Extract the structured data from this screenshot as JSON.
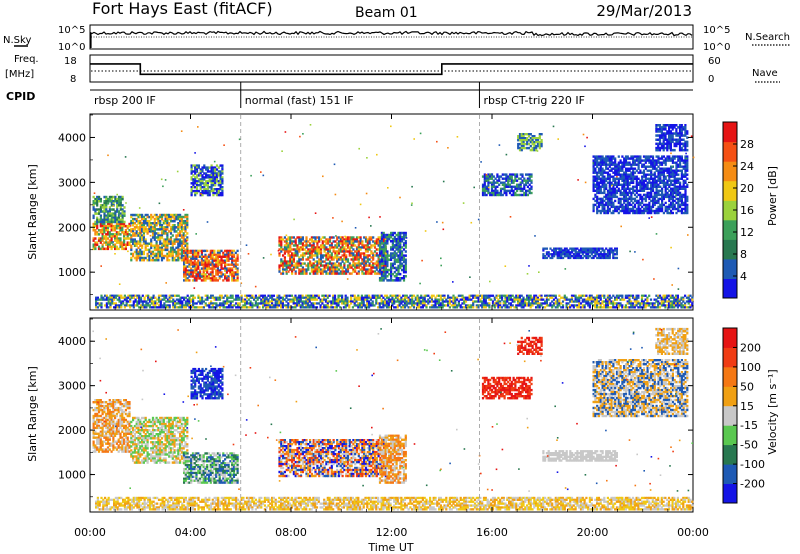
{
  "header": {
    "station": "Fort Hays East (fitACF)",
    "beam": "Beam 01",
    "date": "29/Mar/2013"
  },
  "status_panels": {
    "nsky_label": "N.Sky",
    "nsky_ticks": [
      "10^5",
      "10^0"
    ],
    "nsearch_label": "N.Search",
    "nsearch_ticks": [
      "10^5",
      "10^0"
    ],
    "freq_label": "Freq.",
    "freq_unit": "[MHz]",
    "freq_ticks": [
      "18",
      "8"
    ],
    "nave_label": "Nave",
    "nave_ticks": [
      "60",
      "0"
    ],
    "cpid_label": "CPID",
    "cpid_segments": [
      {
        "label": "rbsp 200 IF",
        "start": 0,
        "end": 6
      },
      {
        "label": "normal (fast) 151 IF",
        "start": 6,
        "end": 15.5
      },
      {
        "label": "rbsp CT-trig 220 IF",
        "start": 15.5,
        "end": 24
      }
    ],
    "freq_steps": [
      {
        "start": 0,
        "end": 2,
        "value": 0.7
      },
      {
        "start": 2,
        "end": 14,
        "value": 0.25
      },
      {
        "start": 14,
        "end": 24,
        "value": 0.7
      }
    ]
  },
  "chart_data": [
    {
      "type": "heatmap",
      "name": "power",
      "ylabel": "Slant Range [km]",
      "yticks": [
        "4000",
        "3000",
        "2000",
        "1000"
      ],
      "ytick_values": [
        4000,
        3000,
        2000,
        1000
      ],
      "ylim": [
        180,
        4500
      ],
      "colorbar_label": "Power [dB]",
      "colorbar_ticks": [
        "28",
        "24",
        "20",
        "16",
        "12",
        "8",
        "4"
      ],
      "colorbar_colors": [
        "#1414e6",
        "#1e5ab4",
        "#287850",
        "#3ca05a",
        "#9bd23c",
        "#f0c814",
        "#f58c14",
        "#f55014",
        "#e61414"
      ],
      "echo_regions": [
        {
          "x0": 0.1,
          "x1": 1.6,
          "y0": 1500,
          "y1": 2100,
          "colors": [
            "#e61414",
            "#f58c14",
            "#f0c814",
            "#3ca05a"
          ]
        },
        {
          "x0": 0.1,
          "x1": 1.4,
          "y0": 2100,
          "y1": 2700,
          "colors": [
            "#1e5ab4",
            "#287850",
            "#3ca05a",
            "#9bd23c"
          ]
        },
        {
          "x0": 1.6,
          "x1": 3.9,
          "y0": 1250,
          "y1": 2300,
          "colors": [
            "#f58c14",
            "#f0c814",
            "#3ca05a",
            "#1e5ab4"
          ]
        },
        {
          "x0": 3.7,
          "x1": 5.9,
          "y0": 800,
          "y1": 1500,
          "colors": [
            "#e61414",
            "#f55014",
            "#f58c14",
            "#f0c814",
            "#1e5ab4"
          ]
        },
        {
          "x0": 4.0,
          "x1": 5.3,
          "y0": 2700,
          "y1": 3400,
          "colors": [
            "#1414e6",
            "#1e5ab4",
            "#9bd23c"
          ]
        },
        {
          "x0": 7.5,
          "x1": 11.8,
          "y0": 950,
          "y1": 1800,
          "colors": [
            "#e61414",
            "#f55014",
            "#f58c14",
            "#f0c814",
            "#3ca05a",
            "#1e5ab4"
          ]
        },
        {
          "x0": 11.5,
          "x1": 12.6,
          "y0": 800,
          "y1": 1900,
          "colors": [
            "#1e5ab4",
            "#1414e6",
            "#3ca05a"
          ]
        },
        {
          "x0": 15.6,
          "x1": 17.6,
          "y0": 2700,
          "y1": 3200,
          "colors": [
            "#1e5ab4",
            "#1414e6",
            "#3ca05a"
          ]
        },
        {
          "x0": 17.0,
          "x1": 18.0,
          "y0": 3700,
          "y1": 4100,
          "colors": [
            "#1e5ab4",
            "#9bd23c"
          ]
        },
        {
          "x0": 20.0,
          "x1": 23.8,
          "y0": 2300,
          "y1": 3600,
          "colors": [
            "#1414e6",
            "#1e5ab4"
          ]
        },
        {
          "x0": 22.5,
          "x1": 23.8,
          "y0": 3700,
          "y1": 4300,
          "colors": [
            "#1414e6",
            "#1e5ab4"
          ]
        },
        {
          "x0": 18.0,
          "x1": 21.0,
          "y0": 1300,
          "y1": 1550,
          "colors": [
            "#1e5ab4",
            "#1414e6"
          ]
        },
        {
          "x0": 0.2,
          "x1": 24,
          "y0": 200,
          "y1": 500,
          "colors": [
            "#1414e6",
            "#1e5ab4",
            "#3ca05a",
            "#f0c814"
          ]
        }
      ]
    },
    {
      "type": "heatmap",
      "name": "velocity",
      "ylabel": "Slant Range [km]",
      "yticks": [
        "4000",
        "3000",
        "2000",
        "1000"
      ],
      "ytick_values": [
        4000,
        3000,
        2000,
        1000
      ],
      "ylim": [
        180,
        4500
      ],
      "colorbar_label": "Velocity [m s⁻¹]",
      "colorbar_ticks": [
        "200",
        "100",
        "50",
        "15",
        "-15",
        "-50",
        "-100",
        "-200"
      ],
      "colorbar_colors": [
        "#1414e6",
        "#1e5ab4",
        "#287850",
        "#5ac850",
        "#c8c8c8",
        "#f0a014",
        "#f57814",
        "#f03c14",
        "#e61414"
      ],
      "echo_regions": [
        {
          "x0": 0.1,
          "x1": 1.6,
          "y0": 1500,
          "y1": 2700,
          "colors": [
            "#c8c8c8",
            "#f0a014",
            "#f57814"
          ]
        },
        {
          "x0": 1.6,
          "x1": 3.9,
          "y0": 1250,
          "y1": 2300,
          "colors": [
            "#c8c8c8",
            "#f0a014",
            "#5ac850"
          ]
        },
        {
          "x0": 3.7,
          "x1": 5.9,
          "y0": 800,
          "y1": 1500,
          "colors": [
            "#5ac850",
            "#287850",
            "#1e5ab4",
            "#c8c8c8"
          ]
        },
        {
          "x0": 4.0,
          "x1": 5.3,
          "y0": 2700,
          "y1": 3400,
          "colors": [
            "#1414e6",
            "#1e5ab4"
          ]
        },
        {
          "x0": 7.5,
          "x1": 11.8,
          "y0": 950,
          "y1": 1800,
          "colors": [
            "#f03c14",
            "#f57814",
            "#f0a014",
            "#1e5ab4",
            "#1414e6",
            "#c8c8c8"
          ]
        },
        {
          "x0": 11.5,
          "x1": 12.6,
          "y0": 800,
          "y1": 1900,
          "colors": [
            "#f57814",
            "#c8c8c8",
            "#f0a014"
          ]
        },
        {
          "x0": 15.6,
          "x1": 17.6,
          "y0": 2700,
          "y1": 3200,
          "colors": [
            "#e61414",
            "#f03c14"
          ]
        },
        {
          "x0": 17.0,
          "x1": 18.0,
          "y0": 3700,
          "y1": 4100,
          "colors": [
            "#e61414",
            "#f03c14"
          ]
        },
        {
          "x0": 20.0,
          "x1": 23.8,
          "y0": 2300,
          "y1": 3600,
          "colors": [
            "#c8c8c8",
            "#f0a014",
            "#1e5ab4"
          ]
        },
        {
          "x0": 22.5,
          "x1": 23.8,
          "y0": 3700,
          "y1": 4300,
          "colors": [
            "#f0a014",
            "#c8c8c8"
          ]
        },
        {
          "x0": 18.0,
          "x1": 21.0,
          "y0": 1300,
          "y1": 1550,
          "colors": [
            "#c8c8c8"
          ]
        },
        {
          "x0": 0.2,
          "x1": 24,
          "y0": 200,
          "y1": 500,
          "colors": [
            "#f0a014",
            "#f0c814",
            "#c8c8c8"
          ]
        }
      ]
    }
  ],
  "xaxis": {
    "xlabel": "Time UT",
    "ticks": [
      "00:00",
      "04:00",
      "08:00",
      "12:00",
      "16:00",
      "20:00",
      "00:00"
    ],
    "tick_values": [
      0,
      4,
      8,
      12,
      16,
      20,
      24
    ],
    "xlim": [
      0,
      24
    ]
  }
}
